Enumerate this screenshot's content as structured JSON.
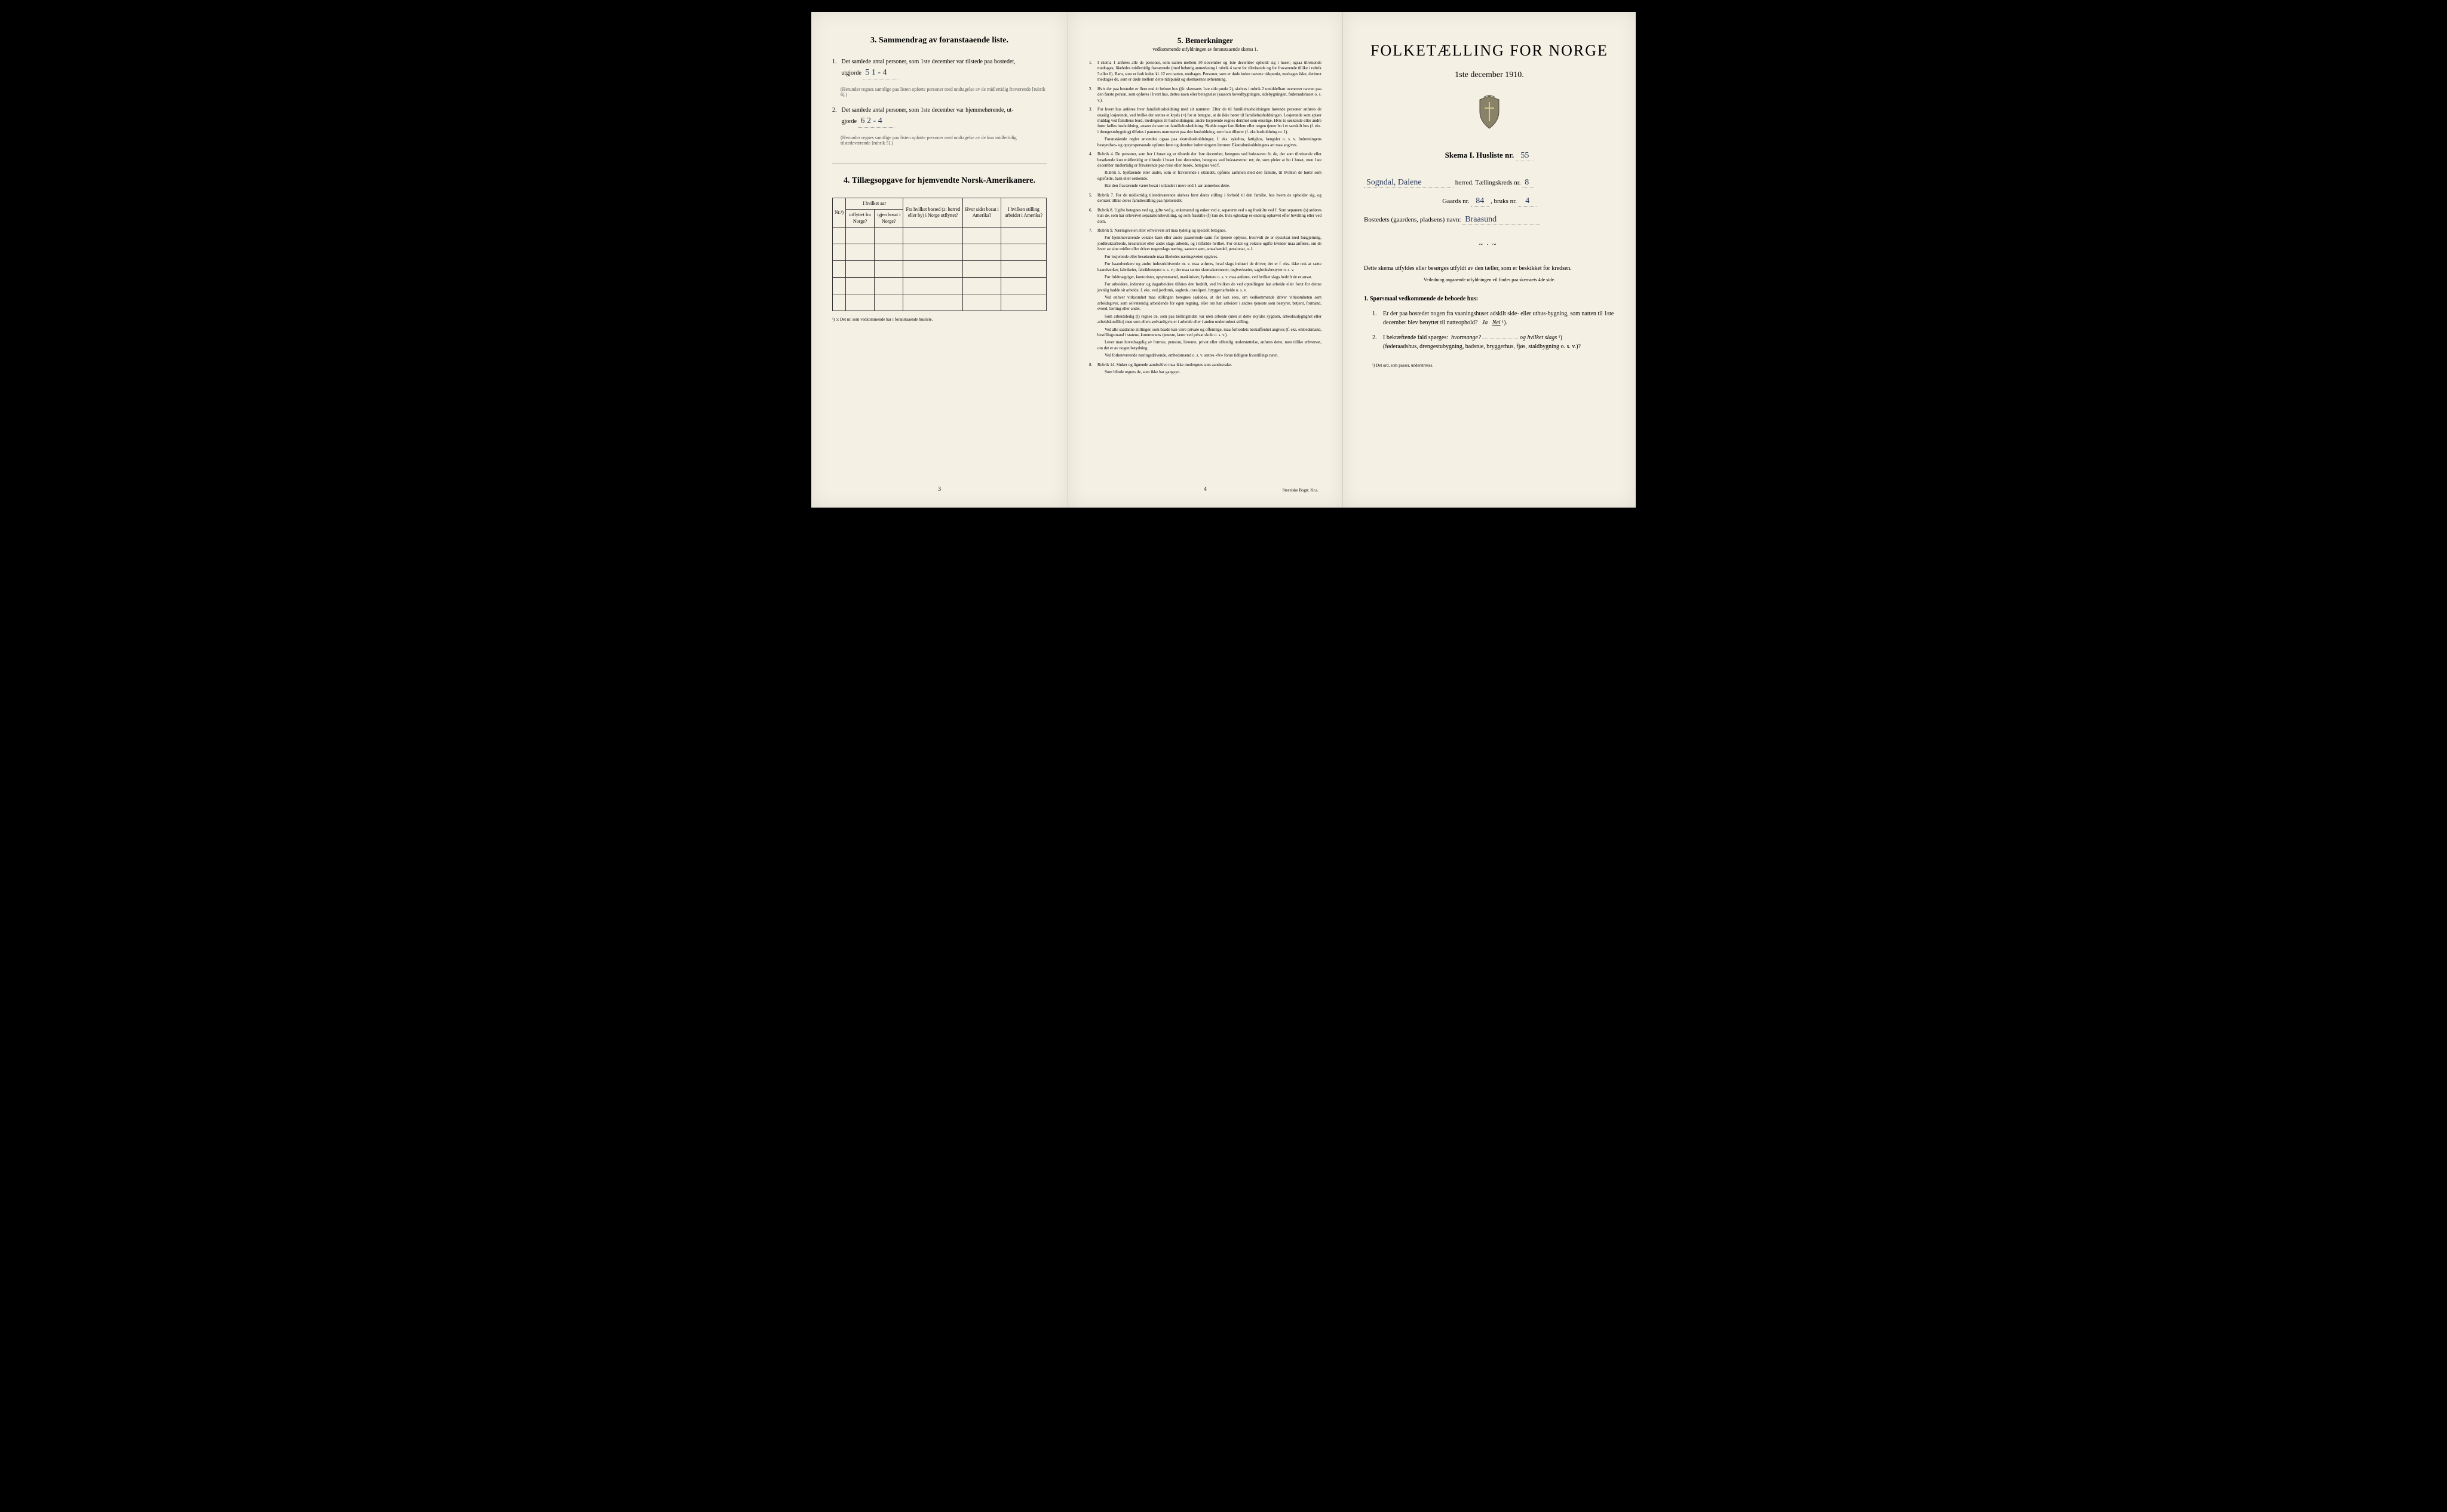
{
  "colors": {
    "paper": "#f4f0e4",
    "ink": "#1a1a1a",
    "handwriting": "#2a3a5a",
    "border": "#333333"
  },
  "left": {
    "section3_title": "3.   Sammendrag av foranstaaende liste.",
    "item1_prefix": "Det samlede antal personer, som 1ste december var tilstede paa bostedet,",
    "item1_label": "utgjorde",
    "item1_value": "5     1 - 4",
    "item1_note": "(Herunder regnes samtlige paa listen opførte personer med undtagelse av de midlertidig fraværende [rubrik 6].)",
    "item2_prefix": "Det samlede antal personer, som 1ste december var hjemmehørende, ut-",
    "item2_label": "gjorde",
    "item2_value": "6     2 - 4",
    "item2_note": "(Herunder regnes samtlige paa listen opførte personer med undtagelse av de kun midlertidig tilstedeværende [rubrik 5].)",
    "section4_title": "4.   Tillægsopgave for hjemvendte Norsk-Amerikanere.",
    "table": {
      "header_row1": [
        "",
        "I hvilket aar",
        "",
        "",
        ""
      ],
      "headers": [
        "Nr.¹)",
        "utflyttet fra Norge?",
        "igjen bosat i Norge?",
        "Fra hvilket bosted (ɔ: herred eller by) i Norge utflyttet?",
        "Hvor sidst bosat i Amerika?",
        "I hvilken stilling arbeidet i Amerika?"
      ],
      "empty_rows": 5
    },
    "footnote": "¹) ɔ: Det nr. som vedkommende har i foranstaaende husliste.",
    "page_num": "3"
  },
  "middle": {
    "title": "5.   Bemerkninger",
    "subtitle": "vedkommende utfyldningen av foranstaaende skema 1.",
    "items": [
      {
        "n": "1.",
        "text": "I skema 1 anføres alle de personer, som natten mellem 30 november og 1ste december opholdt sig i huset; ogsaa tilreisende medtages; likeledes midlertidig fraværende (med behørig anmerkning i rubrik 4 samt for tilreisende og for fraværende tillike i rubrik 5 eller 6). Barn, som er født inden kl. 12 om natten, medtages. Personer, som er døde inden nævnte tidspunkt, medtages ikke; derimot medtages de, som er døde mellem dette tidspunkt og skemaernes avhentning."
      },
      {
        "n": "2.",
        "text": "Hvis der paa bostedet er flere end ét beboet hus (jfr. skemaets 1ste side punkt 2), skrives i rubrik 2 umiddelbart ovenover navnet paa den første person, som opføres i hvert hus, dettes navn eller betegnelse (saasom hovedbygningen, sidebygningen, føderaadshuset o. s. v.)."
      },
      {
        "n": "3.",
        "text": "For hvert hus anføres hver familiehusholdning med sit nummer. Efter de til familiehusholdningen hørende personer anføres de ensslig losjerende, ved hvilke der sættes et kryds (×) for at betegne, at de ikke hører til familiehusholdningen. Losjerende som spiser middag ved familiens bord, medregnes til husholdningen; andre losjerende regnes derimot som ensslige. Hvis to søskende eller andre fører fælles husholdning, ansees de som en familiehusholdning. Skulde noget familielem eller nogen tjener bo i et særskilt hus (f. eks. i drengestubygning) tilføies i parentes nummeret paa den husholdning, som han tilhører (f. eks husholdning nr. 1).",
        "paras": [
          "Foranstående regler anvendes ogsaa paa ekstrahusholdninger, f. eks. sykehus, fattighus, fængsler o. s. v.  Indretningens bestyrelses- og opsynspersonale opføres først og derefter indretningens lemmer. Ekstrahusholdningens art maa angives."
        ]
      },
      {
        "n": "4.",
        "text": "Rubrik 4. De personer, som bor i huset og er tilstede der 1ste december, betegnes ved bokstaven: b; de, der som tilreisende eller besøkende kun midlertidig er tilstede i huset 1ste december, betegnes ved bokstaverne: mt; de, som pleier at bo i huset, men 1ste december midlertidig er fraværende paa reise eller besøk, betegnes ved f.",
        "paras": [
          "Rubrik 5. Sjøfarende eller andre, som er fraværende i utlandet, opføres sammen med den familie, til hvilken de hører som egtefælle, barn eller søskende.",
          "Har den fraværende været bosat i utlandet i mere end 1 aar anmerkes dette."
        ]
      },
      {
        "n": "5.",
        "text": "Rubrik 7. For de midlertidig tilstedeværende skrives først deres stilling i forhold til den familie, hos hvem de opholder sig, og dernæst tillike deres familiestilling paa hjemstedet."
      },
      {
        "n": "6.",
        "text": "Rubrik 8. Ugifte betegnes ved ug, gifte ved g, enkemænd og enker ved e, separerte ved s og fraskilte ved f. Som separerte (s) anføres kun de, som har erhvervet separationsbevilling, og som fraskilte (f) kun de, hvis egteskap er endelig ophævet efter bevilling eller ved dom."
      },
      {
        "n": "7.",
        "text": "Rubrik 9. Næringsveien eller erhvervets art maa tydelig og specielt betegnes.",
        "paras": [
          "For hjemmeværende voksne barn eller andre paarørende samt for tjenere oplyses, hvorvidt de er sysselsat med husgjerning, jordbruksarbeide, kreaturstel eller andet slags arbeide, og i tilfælde hvilket. For enker og voksne ugifte kvinder maa anføres, om de lever av sine midler eller driver nogenslags næring, saasom søm, smaahandel, pensionat, o. l.",
          "For losjerende eller besøkende maa likeledes næringsveien opgives.",
          "For haandverkere og andre industridrivende m. v. maa anføres, hvad slags industri de driver; det er f. eks. ikke nok at sætte haandverker, fabrikeier, fabrikbestyrer o. s. v.; der maa sættes skomakermester, teglverkseier, sagbruksbestyrer o. s. v.",
          "For fuldmægtiger, kontorister, opsynsmænd, maskinister, fyrbøtere o. s. v. maa anføres, ved hvilket slags bedrift de er ansat.",
          "For arbeidere, inderster og dagarbeidere tilføies den bedrift, ved hvilken de ved optællingen har arbeide eller forut for denne jevnlig hadde sit arbeide, f. eks. ved jordbruk, sagbruk, træsliperi, bryggeriarbeide o. s. v.",
          "Ved enhver virksomhet maa stillingen betegnes saaledes, at det kan sees, om vedkommende driver virksomheten som arbeidsgiver, som selvstændig arbeidende for egen regning, eller om han arbeider i andres tjeneste som bestyrer, betjent, formand, svend, lærling eller andet.",
          "Som arbeidsledig (l) regnes de, som paa tællingstiden var uten arbeide (uten at dette skyldes sygdom, arbeidsudygtighet eller arbeidskonflikt) men som ellers sedvanligvis er i arbeide eller i anden underordnet stilling.",
          "Ved alle saadanne stillinger, som baade kan være private og offentlige, maa forholdets beskaffenhet angives (f. eks. embedsmand, bestillingsmand i statens, kommunens tjeneste, lærer ved privat skole o. s. v.).",
          "Lever man hovedsagelig av formue, pension, livrente, privat eller offentlig understøttelse, anføres dette, men tillike erhvervet, om det er av nogen betydning.",
          "Ved forhenværende næringsdrivende, embedsmænd o. s. v. sættes «fv» foran tidligere livsstillings navn."
        ]
      },
      {
        "n": "8.",
        "text": "Rubrik 14. Sinker og lignende aandsslöve maa ikke medregnes som aandssvake.",
        "paras": [
          "Som blinde regnes de, som ikke har gangsyn."
        ]
      }
    ],
    "page_num": "4",
    "printer": "Steen'ske Bogtr.  Kr.a."
  },
  "right": {
    "main_title": "FOLKETÆLLING FOR NORGE",
    "main_date": "1ste december 1910.",
    "skema_label": "Skema I.   Husliste nr.",
    "skema_value": "55",
    "line1_value": "Sogndal, Dalene",
    "line1_suffix": "herred.   Tællingskreds nr.",
    "line1_kreds": "8",
    "line2_prefix": "Gaards nr.",
    "line2_gaard": "84",
    "line2_mid": ", bruks nr.",
    "line2_bruk": "4",
    "line3_prefix": "Bostedets (gaardens, pladsens) navn:",
    "line3_value": "Braasund",
    "instruction": "Dette skema utfyldes eller besørges utfyldt av den tæller, som er beskikket for kredsen.",
    "instruction_small": "Veiledning angaaende utfyldningen vil findes paa skemaets 4de side.",
    "q_heading": "1. Spørsmaal vedkommende de beboede hus:",
    "q1": "Er der paa bostedet nogen fra vaaningshuset adskilt side- eller uthus-bygning, som natten til 1ste december blev benyttet til natteophold?",
    "q1_ja": "Ja",
    "q1_nei": "Nei",
    "q1_sup": "¹).",
    "q2": "I bekræftende fald spørges:",
    "q2_a": "hvormange?",
    "q2_b": "og hvilket slags",
    "q2_sup": "¹)",
    "q2_tail": "(føderaadshus, drengestubygning, badstue, bryggerhus, fjøs, staldbygning o. s. v.)?",
    "footnote": "¹) Det ord, som passer, understrekes."
  }
}
